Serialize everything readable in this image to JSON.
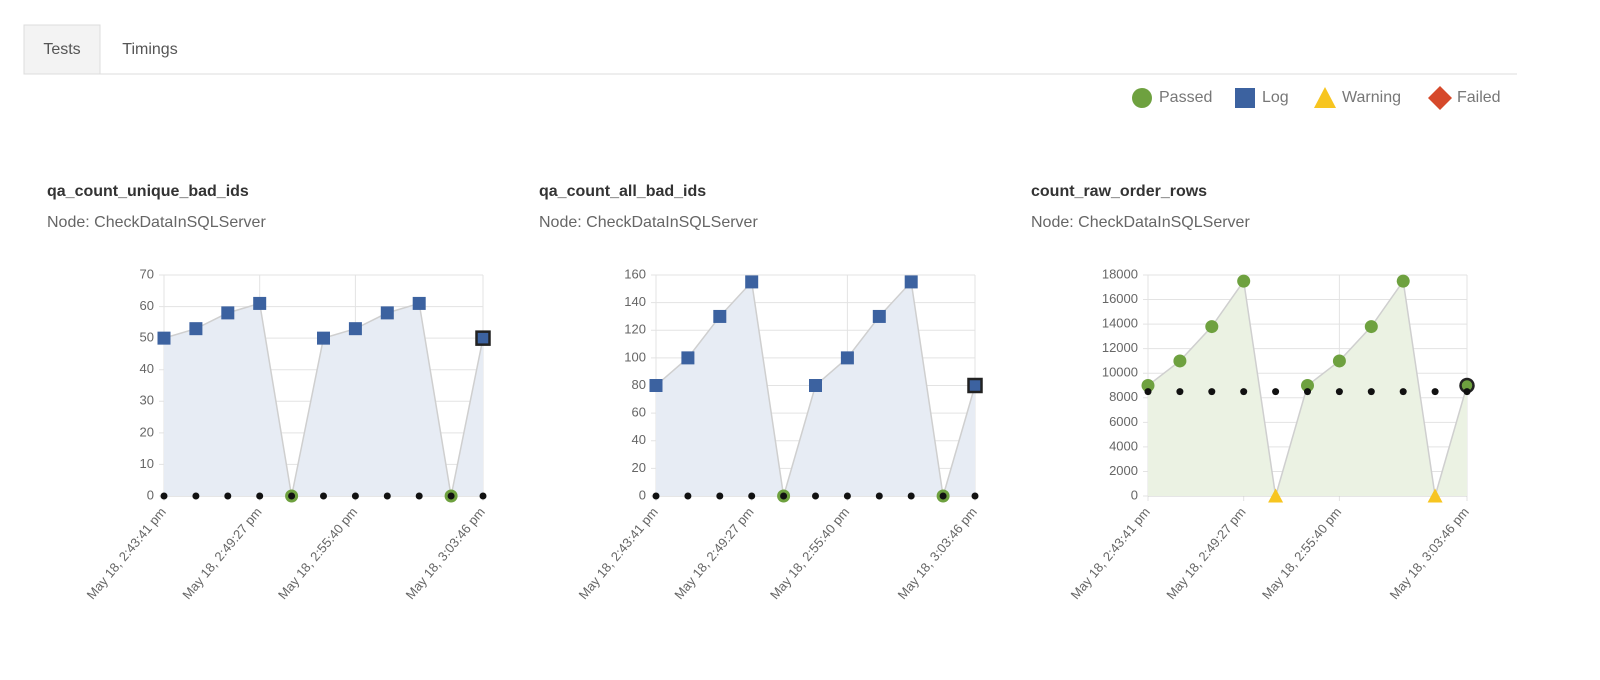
{
  "tabs": {
    "items": [
      "Tests",
      "Timings"
    ],
    "active": 0
  },
  "legend": [
    {
      "label": "Passed",
      "shape": "circle",
      "color": "#6ea13f"
    },
    {
      "label": "Log",
      "shape": "square",
      "color": "#3c62a0"
    },
    {
      "label": "Warning",
      "shape": "triangle",
      "color": "#f7c520"
    },
    {
      "label": "Failed",
      "shape": "diamond",
      "color": "#d6492b"
    }
  ],
  "chart_data": [
    {
      "type": "line",
      "title": "qa_count_unique_bad_ids",
      "subtitle": "Node: CheckDataInSQLServer",
      "categories": [
        "May 18, 2:43:41 pm",
        null,
        null,
        "May 18, 2:49:27 pm",
        null,
        null,
        "May 18, 2:55:40 pm",
        null,
        null,
        null,
        "May 18, 3:03:46 pm"
      ],
      "series": [
        {
          "values": [
            50,
            53,
            58,
            61,
            0,
            50,
            53,
            58,
            61,
            0,
            50
          ],
          "markers": [
            "square",
            "square",
            "square",
            "square",
            "circle",
            "square",
            "square",
            "square",
            "square",
            "circle",
            "square"
          ],
          "fill": "#e7ecf4",
          "highlight": 10
        },
        {
          "values": [
            0,
            0,
            0,
            0,
            0,
            0,
            0,
            0,
            0,
            0,
            0
          ],
          "color": "#111111"
        }
      ],
      "ylim": [
        0,
        70
      ],
      "yticks": [
        0,
        10,
        20,
        30,
        40,
        50,
        60,
        70
      ],
      "grid": true
    },
    {
      "type": "line",
      "title": "qa_count_all_bad_ids",
      "subtitle": "Node: CheckDataInSQLServer",
      "categories": [
        "May 18, 2:43:41 pm",
        null,
        null,
        "May 18, 2:49:27 pm",
        null,
        null,
        "May 18, 2:55:40 pm",
        null,
        null,
        null,
        "May 18, 3:03:46 pm"
      ],
      "series": [
        {
          "values": [
            80,
            100,
            130,
            155,
            0,
            80,
            100,
            130,
            155,
            0,
            80
          ],
          "markers": [
            "square",
            "square",
            "square",
            "square",
            "circle",
            "square",
            "square",
            "square",
            "square",
            "circle",
            "square"
          ],
          "fill": "#e7ecf4",
          "highlight": 10
        },
        {
          "values": [
            0,
            0,
            0,
            0,
            0,
            0,
            0,
            0,
            0,
            0,
            0
          ],
          "color": "#111111"
        }
      ],
      "ylim": [
        0,
        160
      ],
      "yticks": [
        0,
        20,
        40,
        60,
        80,
        100,
        120,
        140,
        160
      ],
      "grid": true
    },
    {
      "type": "line",
      "title": "count_raw_order_rows",
      "subtitle": "Node: CheckDataInSQLServer",
      "categories": [
        "May 18, 2:43:41 pm",
        null,
        null,
        "May 18, 2:49:27 pm",
        null,
        null,
        "May 18, 2:55:40 pm",
        null,
        null,
        null,
        "May 18, 3:03:46 pm"
      ],
      "series": [
        {
          "values": [
            9000,
            11000,
            13800,
            17500,
            0,
            9000,
            11000,
            13800,
            17500,
            0,
            9000
          ],
          "markers": [
            "circle",
            "circle",
            "circle",
            "circle",
            "triangle",
            "circle",
            "circle",
            "circle",
            "circle",
            "triangle",
            "circle"
          ],
          "fill": "#ebf2e3",
          "highlight": 10
        },
        {
          "values": [
            8500,
            8500,
            8500,
            8500,
            8500,
            8500,
            8500,
            8500,
            8500,
            8500,
            8500
          ],
          "color": "#111111"
        }
      ],
      "ylim": [
        0,
        18000
      ],
      "yticks": [
        0,
        2000,
        4000,
        6000,
        8000,
        10000,
        12000,
        14000,
        16000,
        18000
      ],
      "grid": true
    }
  ]
}
